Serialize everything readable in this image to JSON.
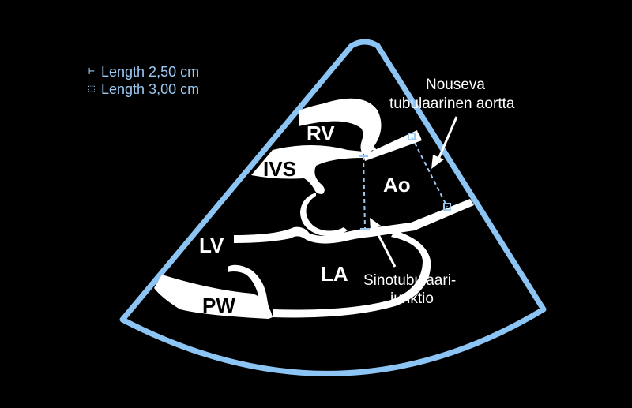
{
  "legend": [
    {
      "marker": "tick-marker-icon",
      "glyph": "⊢",
      "text": "Length 2,50 cm"
    },
    {
      "marker": "square-marker-icon",
      "glyph": "⬚",
      "text": "Length 3,00 cm"
    }
  ],
  "labels": {
    "rv": "RV",
    "ivs": "IVS",
    "ao": "Ao",
    "lv": "LV",
    "la": "LA",
    "pw": "PW",
    "ascending_line1": "Nouseva",
    "ascending_line2": "tubulaarinen aortta",
    "sinotubular_line1": "Sinotubulaari-",
    "sinotubular_line2": "junktio"
  },
  "colors": {
    "background": "#000000",
    "sector_outline": "#8cc4f4",
    "anatomy": "#ffffff",
    "measure": "#9cc9f2"
  }
}
